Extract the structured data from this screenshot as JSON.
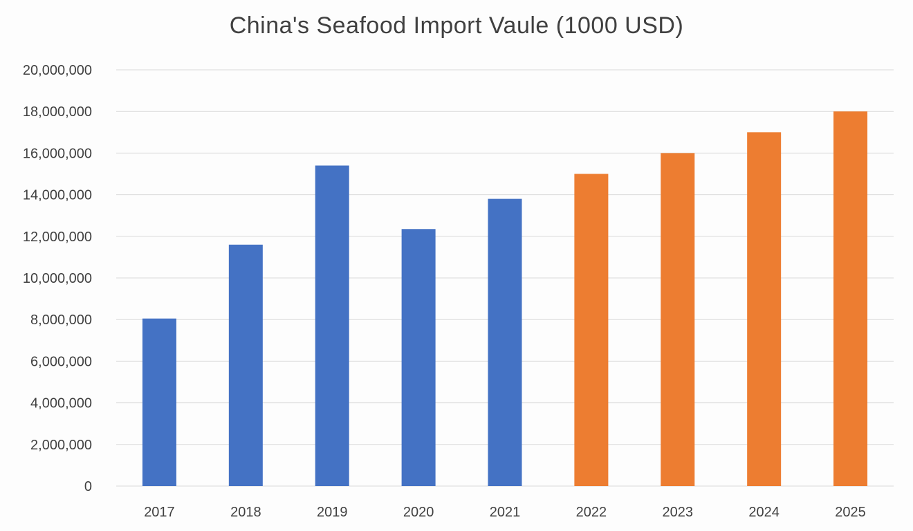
{
  "chart_data": {
    "type": "bar",
    "title": "China's Seafood Import Vaule (1000 USD)",
    "xlabel": "",
    "ylabel": "",
    "categories": [
      "2017",
      "2018",
      "2019",
      "2020",
      "2021",
      "2022",
      "2023",
      "2024",
      "2025"
    ],
    "values": [
      8050000,
      11600000,
      15400000,
      12350000,
      13800000,
      15000000,
      16000000,
      17000000,
      18000000
    ],
    "bar_colors": [
      "#4472c4",
      "#4472c4",
      "#4472c4",
      "#4472c4",
      "#4472c4",
      "#ed7d31",
      "#ed7d31",
      "#ed7d31",
      "#ed7d31"
    ],
    "ylim": [
      0,
      20000000
    ],
    "ytick_step": 2000000,
    "ytick_labels": [
      "0",
      "2,000,000",
      "4,000,000",
      "6,000,000",
      "8,000,000",
      "10,000,000",
      "12,000,000",
      "14,000,000",
      "16,000,000",
      "18,000,000",
      "20,000,000"
    ],
    "grid": true,
    "legend": "none"
  }
}
